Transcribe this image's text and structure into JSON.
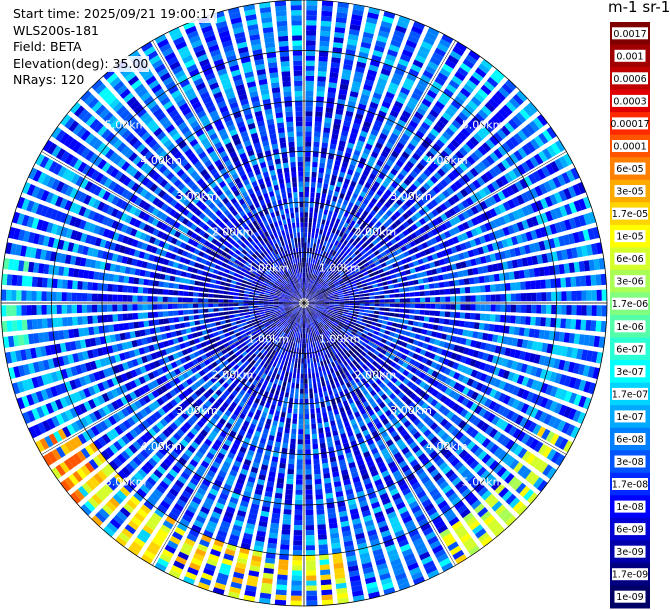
{
  "header": {
    "start_time": "Start time: 2025/09/21 19:00:17",
    "instrument": "WLS200s-181",
    "field": "Field: BETA",
    "elevation": "Elevation(deg): 35.00",
    "nrays": "NRays: 120"
  },
  "colorbar": {
    "unit_label": "m-1 sr-1",
    "ticks": [
      "0.0017",
      "0.001",
      "0.0006",
      "0.0003",
      "0.00017",
      "0.0001",
      "6e-05",
      "3e-05",
      "1.7e-05",
      "1e-05",
      "6e-06",
      "3e-06",
      "1.7e-06",
      "1e-06",
      "6e-07",
      "3e-07",
      "1.7e-07",
      "1e-07",
      "6e-08",
      "3e-08",
      "1.7e-08",
      "1e-08",
      "6e-09",
      "3e-09",
      "1.7e-09",
      "1e-09"
    ],
    "colors": [
      "#800000",
      "#a00000",
      "#c00000",
      "#e00000",
      "#ff2a00",
      "#ff5500",
      "#ff8000",
      "#ffaa00",
      "#ffd400",
      "#ffff00",
      "#d4ff2a",
      "#aaff55",
      "#80ff80",
      "#55ffaa",
      "#2affd4",
      "#00ffff",
      "#00d4ff",
      "#00aaff",
      "#0080ff",
      "#0055ff",
      "#002aff",
      "#0000ff",
      "#0000d4",
      "#0000aa",
      "#000080",
      "#000066"
    ]
  },
  "chart_data": {
    "type": "heatmap",
    "projection": "polar-ppi",
    "n_rays": 120,
    "max_range_km": 6,
    "range_rings_km": [
      1,
      2,
      3,
      4,
      5
    ],
    "ring_labels": [
      "1.00km",
      "2.00km",
      "3.00km",
      "4.00km",
      "5.00km"
    ],
    "color_scale": "log10",
    "value_range": [
      1e-09,
      0.0017
    ],
    "typical_log10_value": -7.7,
    "enhanced_sectors": [
      {
        "azimuth_deg": [
          170,
          240
        ],
        "range_km": [
          5.0,
          6.0
        ],
        "log10_value": -5.0
      },
      {
        "azimuth_deg": [
          228,
          244
        ],
        "range_km": [
          5.3,
          6.0
        ],
        "log10_value": -4.4
      },
      {
        "azimuth_deg": [
          118,
          150
        ],
        "range_km": [
          5.3,
          6.0
        ],
        "log10_value": -5.2
      },
      {
        "azimuth_deg": [
          262,
          280
        ],
        "range_km": [
          5.5,
          6.0
        ],
        "log10_value": -6.3
      }
    ]
  }
}
